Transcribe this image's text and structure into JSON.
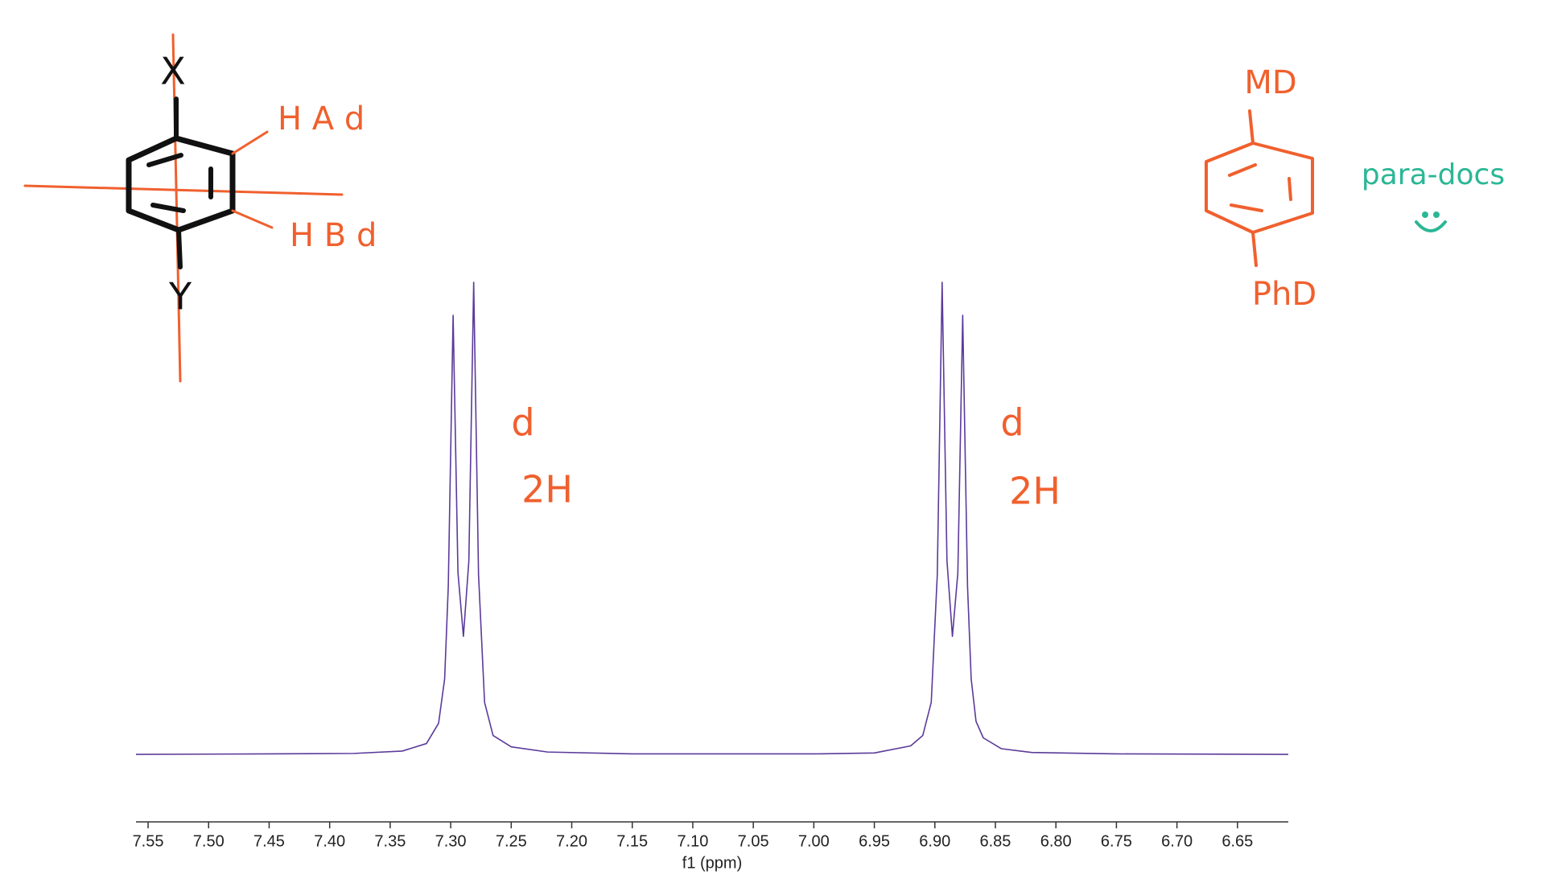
{
  "chart_data": {
    "type": "line",
    "x_label": "f1 (ppm)",
    "color": "#5b3a9a",
    "x": [
      7.56,
      7.45,
      7.38,
      7.34,
      7.32,
      7.31,
      7.305,
      7.302,
      7.298,
      7.294,
      7.2895,
      7.285,
      7.281,
      7.277,
      7.272,
      7.265,
      7.25,
      7.22,
      7.15,
      7.09,
      7.0,
      6.95,
      6.92,
      6.91,
      6.903,
      6.898,
      6.894,
      6.89,
      6.8855,
      6.881,
      6.877,
      6.873,
      6.87,
      6.866,
      6.86,
      6.845,
      6.82,
      6.75,
      6.608
    ],
    "values": [
      0,
      0.001,
      0.002,
      0.007,
      0.023,
      0.066,
      0.16,
      0.355,
      0.93,
      0.385,
      0.25,
      0.41,
      1.0,
      0.38,
      0.11,
      0.04,
      0.016,
      0.005,
      0.001,
      0.001,
      0.001,
      0.003,
      0.018,
      0.04,
      0.11,
      0.38,
      1.0,
      0.41,
      0.25,
      0.385,
      0.93,
      0.355,
      0.16,
      0.07,
      0.035,
      0.012,
      0.004,
      0.001,
      0
    ],
    "xlim": [
      7.56,
      6.608
    ],
    "ylim": [
      -0.143,
      1
    ],
    "xticks": [
      {
        "value": 7.55,
        "label": "7.55"
      },
      {
        "value": 7.5,
        "label": "7.50"
      },
      {
        "value": 7.45,
        "label": "7.45"
      },
      {
        "value": 7.4,
        "label": "7.40"
      },
      {
        "value": 7.35,
        "label": "7.35"
      },
      {
        "value": 7.3,
        "label": "7.30"
      },
      {
        "value": 7.25,
        "label": "7.25"
      },
      {
        "value": 7.2,
        "label": "7.20"
      },
      {
        "value": 7.15,
        "label": "7.15"
      },
      {
        "value": 7.1,
        "label": "7.10"
      },
      {
        "value": 7.05,
        "label": "7.05"
      },
      {
        "value": 7.0,
        "label": "7.00"
      },
      {
        "value": 6.95,
        "label": "6.95"
      },
      {
        "value": 6.9,
        "label": "6.90"
      },
      {
        "value": 6.85,
        "label": "6.85"
      },
      {
        "value": 6.8,
        "label": "6.80"
      },
      {
        "value": 6.75,
        "label": "6.75"
      },
      {
        "value": 6.7,
        "label": "6.70"
      },
      {
        "value": 6.65,
        "label": "6.65"
      }
    ],
    "annotations": [
      "X",
      "H A d",
      "H B d",
      "Y",
      "d",
      "2H",
      "d",
      "2H",
      "MD",
      "PhD",
      "para-docs"
    ]
  }
}
